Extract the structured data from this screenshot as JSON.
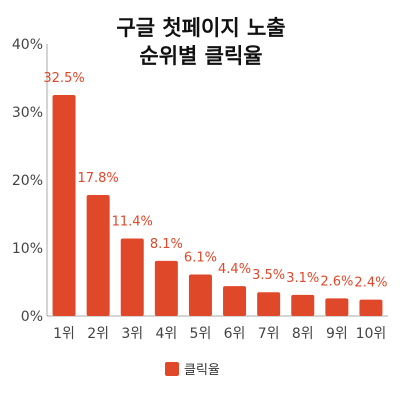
{
  "chart_data": {
    "type": "bar",
    "title_lines": [
      "구글 첫페이지 노출",
      "순위별 클릭율"
    ],
    "categories": [
      "1위",
      "2위",
      "3위",
      "4위",
      "5위",
      "6위",
      "7위",
      "8위",
      "9위",
      "10위"
    ],
    "series": [
      {
        "name": "클릭율",
        "values": [
          32.5,
          17.8,
          11.4,
          8.1,
          6.1,
          4.4,
          3.5,
          3.1,
          2.6,
          2.4
        ],
        "color": "#e0482a"
      }
    ],
    "data_labels": [
      "32.5%",
      "17.8%",
      "11.4%",
      "8.1%",
      "6.1%",
      "4.4%",
      "3.5%",
      "3.1%",
      "2.6%",
      "2.4%"
    ],
    "y_ticks": [
      {
        "value": 0,
        "label": "0%"
      },
      {
        "value": 10,
        "label": "10%"
      },
      {
        "value": 20,
        "label": "20%"
      },
      {
        "value": 30,
        "label": "30%"
      },
      {
        "value": 40,
        "label": "40%"
      }
    ],
    "ylim": [
      0,
      40
    ],
    "grid": false,
    "legend_position": "bottom-center"
  }
}
